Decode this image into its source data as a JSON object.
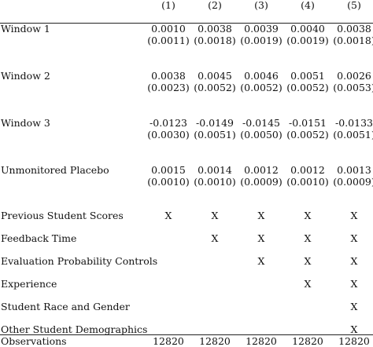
{
  "columns": [
    "(1)",
    "(2)",
    "(3)",
    "(4)",
    "(5)"
  ],
  "estimates": [
    {
      "label": "Window 1",
      "coef": [
        "0.0010",
        "0.0038",
        "0.0039",
        "0.0040",
        "0.0038"
      ],
      "se": [
        "(0.0011)",
        "(0.0018)",
        "(0.0019)",
        "(0.0019)",
        "(0.0018)"
      ]
    },
    {
      "label": "Window 2",
      "coef": [
        "0.0038",
        "0.0045",
        "0.0046",
        "0.0051",
        "0.0026"
      ],
      "se": [
        "(0.0023)",
        "(0.0052)",
        "(0.0052)",
        "(0.0052)",
        "(0.0053)"
      ]
    },
    {
      "label": "Window 3",
      "coef": [
        "-0.0123",
        "-0.0149",
        "-0.0145",
        "-0.0151",
        "-0.0133"
      ],
      "se": [
        "(0.0030)",
        "(0.0051)",
        "(0.0050)",
        "(0.0052)",
        "(0.0051)"
      ]
    },
    {
      "label": "Unmonitored Placebo",
      "coef": [
        "0.0015",
        "0.0014",
        "0.0012",
        "0.0012",
        "0.0013"
      ],
      "se": [
        "(0.0010)",
        "(0.0010)",
        "(0.0009)",
        "(0.0010)",
        "(0.0009)"
      ]
    }
  ],
  "controls": [
    {
      "label": "Previous Student Scores",
      "marks": [
        "X",
        "X",
        "X",
        "X",
        "X"
      ]
    },
    {
      "label": "Feedback Time",
      "marks": [
        "",
        "X",
        "X",
        "X",
        "X"
      ]
    },
    {
      "label": "Evaluation Probability Controls",
      "marks": [
        "",
        "",
        "X",
        "X",
        "X"
      ]
    },
    {
      "label": "Experience",
      "marks": [
        "",
        "",
        "",
        "X",
        "X"
      ]
    },
    {
      "label": "Student Race and Gender",
      "marks": [
        "",
        "",
        "",
        "",
        "X"
      ]
    },
    {
      "label": "Other Student Demographics",
      "marks": [
        "",
        "",
        "",
        "",
        "X"
      ]
    }
  ],
  "observations": {
    "label": "Observations",
    "values": [
      "12820",
      "12820",
      "12820",
      "12820",
      "12820"
    ]
  }
}
